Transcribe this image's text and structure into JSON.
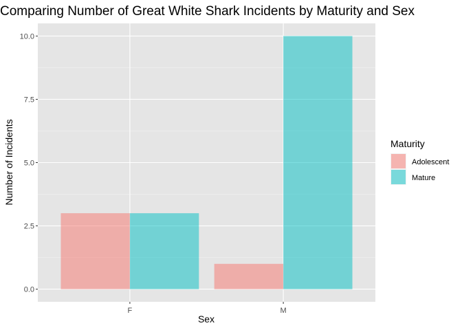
{
  "chart_data": {
    "type": "bar",
    "title": "Comparing Number of Great White Shark Incidents by Maturity and Sex",
    "xlabel": "Sex",
    "ylabel": "Number of Incidents",
    "categories": [
      "F",
      "M"
    ],
    "series": [
      {
        "name": "Adolescent",
        "color": "#F8766D",
        "values": [
          3,
          1
        ]
      },
      {
        "name": "Mature",
        "color": "#00BFC4",
        "values": [
          3,
          10
        ]
      }
    ],
    "ylim": [
      -0.5,
      10.5
    ],
    "yticks": [
      0,
      2.5,
      5,
      7.5,
      10
    ],
    "ytick_labels": [
      "0.0",
      "2.5",
      "5.0",
      "7.5",
      "10.0"
    ],
    "legend": {
      "title": "Maturity",
      "position": "right"
    },
    "grid": true,
    "panel_background": "#E5E5E5",
    "bar_opacity": 0.5
  }
}
